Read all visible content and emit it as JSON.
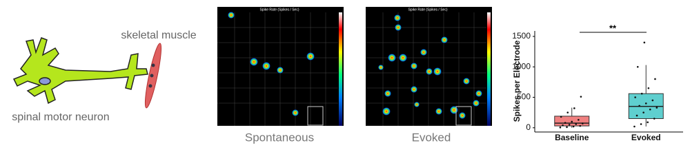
{
  "illustration": {
    "muscle_label": "skeletal muscle",
    "neuron_label": "spinal motor neuron"
  },
  "heatmaps": [
    {
      "title": "Spike Rate (Spikes / Sec)",
      "caption": "Spontaneous"
    },
    {
      "title": "Spike Rate (Spikes / Sec)",
      "caption": "Evoked"
    }
  ],
  "chart_data": {
    "type": "box",
    "y_label": "Spikes per Electrode",
    "annotation": "**",
    "categories": [
      "Baseline",
      "Evoked"
    ],
    "boxes": [
      {
        "color": "#f08080",
        "min": 0,
        "q1": 30,
        "median": 75,
        "q3": 190,
        "max": 330,
        "points": [
          5,
          10,
          20,
          30,
          40,
          50,
          60,
          70,
          80,
          100,
          130,
          180,
          250,
          320,
          510
        ]
      },
      {
        "color": "#5fcfcf",
        "min": 20,
        "q1": 150,
        "median": 350,
        "q3": 560,
        "max": 1030,
        "points": [
          20,
          60,
          90,
          150,
          200,
          250,
          300,
          330,
          360,
          400,
          450,
          500,
          560,
          650,
          800,
          1000,
          1400
        ]
      }
    ],
    "ylim": [
      -70,
      1590
    ],
    "yticks": [
      0,
      500,
      1000,
      1500
    ]
  }
}
